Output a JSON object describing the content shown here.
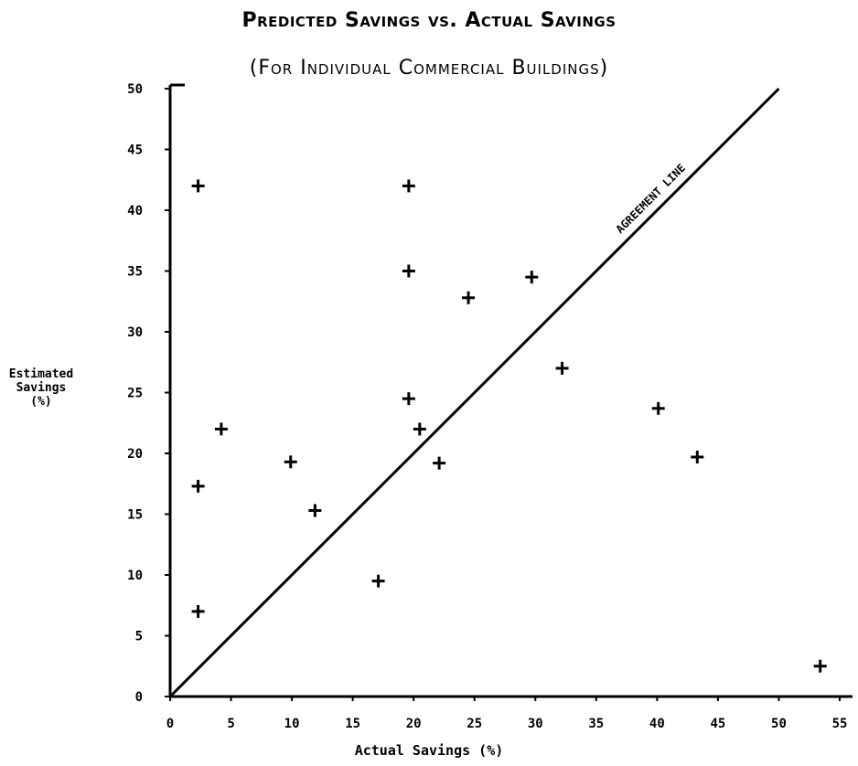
{
  "chart_data": {
    "type": "scatter",
    "title": "Predicted Savings vs. Actual Savings",
    "subtitle": "(For Individual Commercial Buildings)",
    "xlabel": "Actual Savings (%)",
    "ylabel": [
      "Estimated",
      "Savings",
      "(%)"
    ],
    "xlim": [
      0,
      55
    ],
    "ylim": [
      0,
      50
    ],
    "xticks": [
      "0",
      "5",
      "10",
      "15",
      "20",
      "25",
      "30",
      "35",
      "40",
      "45",
      "50",
      "55"
    ],
    "yticks": [
      "0",
      "5",
      "10",
      "15",
      "20",
      "25",
      "30",
      "35",
      "40",
      "45",
      "50"
    ],
    "grid": false,
    "reference_line": {
      "label": "AGREEMENT LINE",
      "from": [
        0,
        0
      ],
      "to": [
        50,
        50
      ]
    },
    "points": [
      [
        2.3,
        42
      ],
      [
        2.3,
        17.3
      ],
      [
        2.3,
        7
      ],
      [
        4.2,
        22
      ],
      [
        9.9,
        19.3
      ],
      [
        11.9,
        15.3
      ],
      [
        17.1,
        9.5
      ],
      [
        19.6,
        42
      ],
      [
        19.6,
        35
      ],
      [
        19.6,
        24.5
      ],
      [
        20.5,
        22
      ],
      [
        22.1,
        19.2
      ],
      [
        24.5,
        32.8
      ],
      [
        29.7,
        34.5
      ],
      [
        32.2,
        27
      ],
      [
        40.1,
        23.7
      ],
      [
        43.3,
        19.7
      ],
      [
        53.4,
        2.5
      ]
    ],
    "marker": "+",
    "color": "#000000"
  }
}
